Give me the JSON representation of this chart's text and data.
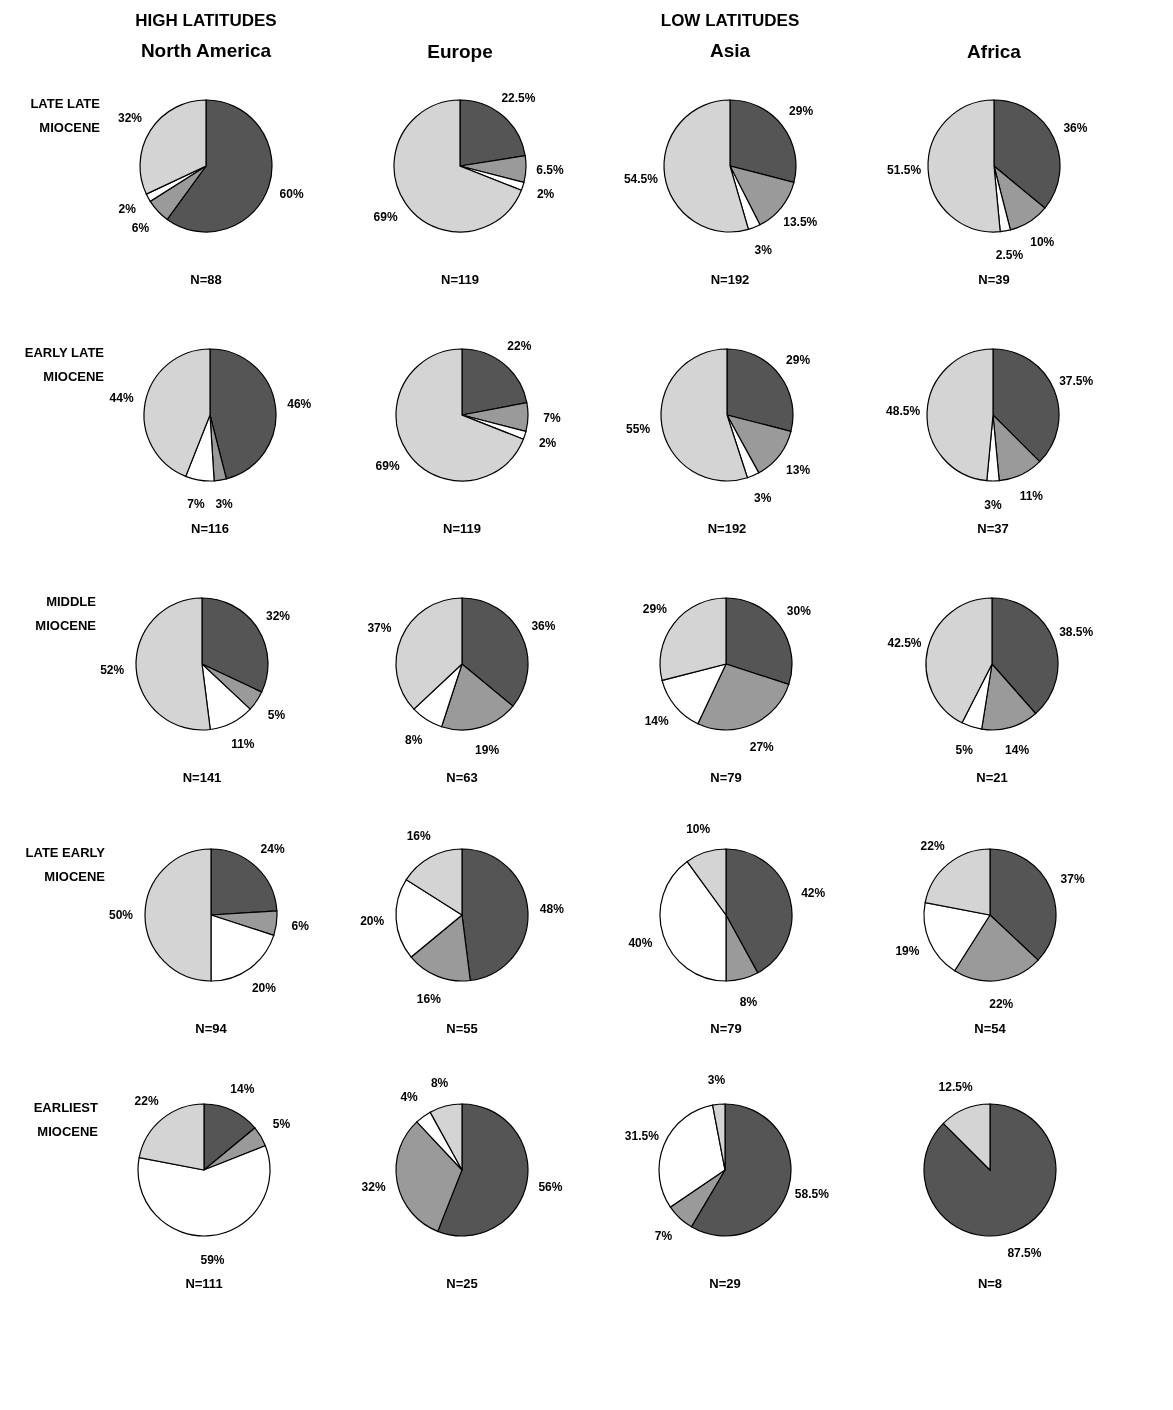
{
  "chart_data": [
    {
      "type": "pie",
      "title": "North America",
      "annotations": [
        "HIGH LATITUDES"
      ],
      "ylabel": "LATE LATE MIOCENE",
      "subtitle": "N=88",
      "categories": [
        null,
        null,
        null,
        null
      ],
      "values": [
        60,
        6,
        2,
        32
      ],
      "value_labels": [
        "60%",
        "6%",
        "2%",
        "32%"
      ],
      "colors": [
        "#555555",
        "#9a9a9a",
        "#ffffff",
        "#d4d4d4"
      ]
    },
    {
      "type": "pie",
      "title": "Europe",
      "subtitle": "N=119",
      "categories": [
        null,
        null,
        null,
        null
      ],
      "values": [
        22.5,
        6.5,
        2,
        69
      ],
      "value_labels": [
        "22.5%",
        "6.5%",
        "2%",
        "69%"
      ],
      "colors": [
        "#555555",
        "#9a9a9a",
        "#ffffff",
        "#d4d4d4"
      ]
    },
    {
      "type": "pie",
      "title": "Asia",
      "annotations": [
        "LOW LATITUDES"
      ],
      "subtitle": "N=192",
      "categories": [
        null,
        null,
        null,
        null
      ],
      "values": [
        29,
        13.5,
        3,
        54.5
      ],
      "value_labels": [
        "29%",
        "13.5%",
        "3%",
        "54.5%"
      ],
      "colors": [
        "#555555",
        "#9a9a9a",
        "#ffffff",
        "#d4d4d4"
      ]
    },
    {
      "type": "pie",
      "title": "Africa",
      "subtitle": "N=39",
      "categories": [
        null,
        null,
        null,
        null
      ],
      "values": [
        36,
        10,
        2.5,
        51.5
      ],
      "value_labels": [
        "36%",
        "10%",
        "2.5%",
        "51.5%"
      ],
      "colors": [
        "#555555",
        "#9a9a9a",
        "#ffffff",
        "#d4d4d4"
      ]
    },
    {
      "type": "pie",
      "ylabel": "EARLY LATE MIOCENE",
      "subtitle": "N=116",
      "categories": [
        null,
        null,
        null,
        null
      ],
      "values": [
        46,
        3,
        7,
        44
      ],
      "value_labels": [
        "46%",
        "3%",
        "7%",
        "44%"
      ],
      "colors": [
        "#555555",
        "#9a9a9a",
        "#ffffff",
        "#d4d4d4"
      ]
    },
    {
      "type": "pie",
      "subtitle": "N=119",
      "categories": [
        null,
        null,
        null,
        null
      ],
      "values": [
        22,
        7,
        2,
        69
      ],
      "value_labels": [
        "22%",
        "7%",
        "2%",
        "69%"
      ],
      "colors": [
        "#555555",
        "#9a9a9a",
        "#ffffff",
        "#d4d4d4"
      ]
    },
    {
      "type": "pie",
      "subtitle": "N=192",
      "categories": [
        null,
        null,
        null,
        null
      ],
      "values": [
        29,
        13,
        3,
        55
      ],
      "value_labels": [
        "29%",
        "13%",
        "3%",
        "55%"
      ],
      "colors": [
        "#555555",
        "#9a9a9a",
        "#ffffff",
        "#d4d4d4"
      ]
    },
    {
      "type": "pie",
      "subtitle": "N=37",
      "categories": [
        null,
        null,
        null,
        null
      ],
      "values": [
        37.5,
        11,
        3,
        48.5
      ],
      "value_labels": [
        "37.5%",
        "11%",
        "3%",
        "48.5%"
      ],
      "colors": [
        "#555555",
        "#9a9a9a",
        "#ffffff",
        "#d4d4d4"
      ]
    },
    {
      "type": "pie",
      "ylabel": "MIDDLE MIOCENE",
      "subtitle": "N=141",
      "categories": [
        null,
        null,
        null,
        null
      ],
      "values": [
        32,
        5,
        11,
        52
      ],
      "value_labels": [
        "32%",
        "5%",
        "11%",
        "52%"
      ],
      "colors": [
        "#555555",
        "#9a9a9a",
        "#ffffff",
        "#d4d4d4"
      ]
    },
    {
      "type": "pie",
      "subtitle": "N=63",
      "categories": [
        null,
        null,
        null,
        null
      ],
      "values": [
        36,
        19,
        8,
        37
      ],
      "value_labels": [
        "36%",
        "19%",
        "8%",
        "37%"
      ],
      "colors": [
        "#555555",
        "#9a9a9a",
        "#ffffff",
        "#d4d4d4"
      ]
    },
    {
      "type": "pie",
      "subtitle": "N=79",
      "categories": [
        null,
        null,
        null,
        null
      ],
      "values": [
        30,
        27,
        14,
        29
      ],
      "value_labels": [
        "30%",
        "27%",
        "14%",
        "29%"
      ],
      "colors": [
        "#555555",
        "#9a9a9a",
        "#ffffff",
        "#d4d4d4"
      ]
    },
    {
      "type": "pie",
      "subtitle": "N=21",
      "categories": [
        null,
        null,
        null,
        null
      ],
      "values": [
        38.5,
        14,
        5,
        42.5
      ],
      "value_labels": [
        "38.5%",
        "14%",
        "5%",
        "42.5%"
      ],
      "colors": [
        "#555555",
        "#9a9a9a",
        "#ffffff",
        "#d4d4d4"
      ]
    },
    {
      "type": "pie",
      "ylabel": "LATE EARLY MIOCENE",
      "subtitle": "N=94",
      "categories": [
        null,
        null,
        null,
        null
      ],
      "values": [
        24,
        6,
        20,
        50
      ],
      "value_labels": [
        "24%",
        "6%",
        "20%",
        "50%"
      ],
      "colors": [
        "#555555",
        "#9a9a9a",
        "#ffffff",
        "#d4d4d4"
      ]
    },
    {
      "type": "pie",
      "subtitle": "N=55",
      "categories": [
        null,
        null,
        null,
        null
      ],
      "values": [
        48,
        16,
        20,
        16
      ],
      "value_labels": [
        "48%",
        "16%",
        "20%",
        "16%"
      ],
      "colors": [
        "#555555",
        "#9a9a9a",
        "#ffffff",
        "#d4d4d4"
      ]
    },
    {
      "type": "pie",
      "subtitle": "N=79",
      "categories": [
        null,
        null,
        null,
        null
      ],
      "values": [
        42,
        8,
        40,
        10
      ],
      "value_labels": [
        "42%",
        "8%",
        "40%",
        "10%"
      ],
      "colors": [
        "#555555",
        "#9a9a9a",
        "#ffffff",
        "#d4d4d4"
      ]
    },
    {
      "type": "pie",
      "subtitle": "N=54",
      "categories": [
        null,
        null,
        null,
        null
      ],
      "values": [
        37,
        22,
        19,
        22
      ],
      "value_labels": [
        "37%",
        "22%",
        "19%",
        "22%"
      ],
      "colors": [
        "#555555",
        "#9a9a9a",
        "#ffffff",
        "#d4d4d4"
      ]
    },
    {
      "type": "pie",
      "ylabel": "EARLIEST MIOCENE",
      "subtitle": "N=111",
      "categories": [
        null,
        null,
        null,
        null
      ],
      "values": [
        14,
        5,
        59,
        22
      ],
      "value_labels": [
        "14%",
        "5%",
        "59%",
        "22%"
      ],
      "colors": [
        "#555555",
        "#9a9a9a",
        "#ffffff",
        "#d4d4d4"
      ]
    },
    {
      "type": "pie",
      "subtitle": "N=25",
      "categories": [
        null,
        null,
        null,
        null
      ],
      "values": [
        56,
        32,
        4,
        8
      ],
      "value_labels": [
        "56%",
        "32%",
        "4%",
        "8%"
      ],
      "colors": [
        "#555555",
        "#9a9a9a",
        "#ffffff",
        "#d4d4d4"
      ]
    },
    {
      "type": "pie",
      "subtitle": "N=29",
      "categories": [
        null,
        null,
        null,
        null
      ],
      "values": [
        58.5,
        7,
        31.5,
        3
      ],
      "value_labels": [
        "58.5%",
        "7%",
        "31.5%",
        "3%"
      ],
      "colors": [
        "#555555",
        "#9a9a9a",
        "#ffffff",
        "#d4d4d4"
      ]
    },
    {
      "type": "pie",
      "subtitle": "N=8",
      "categories": [
        null,
        null,
        null,
        null
      ],
      "values": [
        87.5,
        null,
        null,
        12.5
      ],
      "value_labels": [
        "87.5%",
        null,
        null,
        "12.5%"
      ],
      "colors": [
        "#555555",
        "#9a9a9a",
        "#ffffff",
        "#d4d4d4"
      ]
    }
  ]
}
